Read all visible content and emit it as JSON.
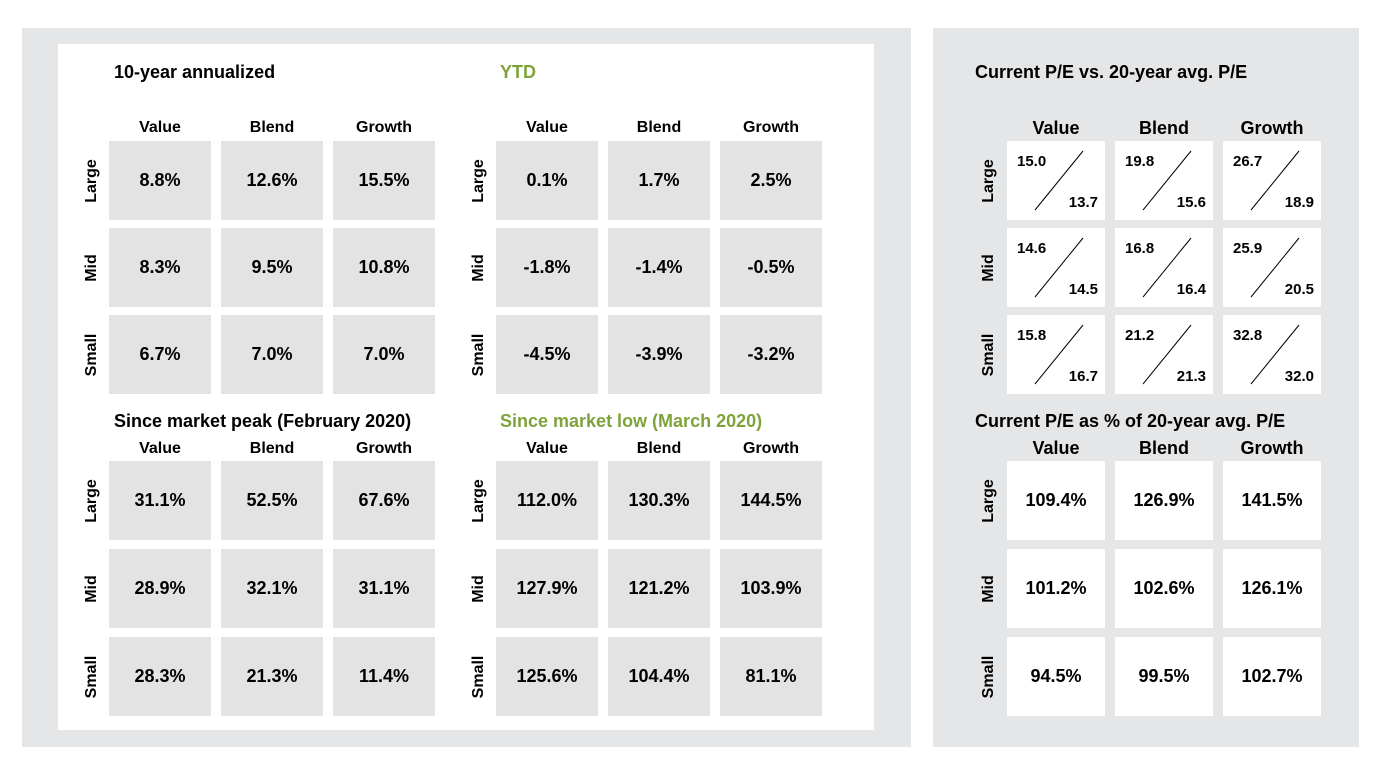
{
  "colors": {
    "panel_bg": "#e5e6e8",
    "cell_gray": "#e3e3e3",
    "green_title": "#7fa33b"
  },
  "columns": [
    "Value",
    "Blend",
    "Growth"
  ],
  "rows": [
    "Large",
    "Mid",
    "Small"
  ],
  "chart_data": [
    {
      "type": "table",
      "title": "10-year annualized",
      "values": [
        [
          "8.8%",
          "12.6%",
          "15.5%"
        ],
        [
          "8.3%",
          "9.5%",
          "10.8%"
        ],
        [
          "6.7%",
          "7.0%",
          "7.0%"
        ]
      ]
    },
    {
      "type": "table",
      "title": "YTD",
      "values": [
        [
          "0.1%",
          "1.7%",
          "2.5%"
        ],
        [
          "-1.8%",
          "-1.4%",
          "-0.5%"
        ],
        [
          "-4.5%",
          "-3.9%",
          "-3.2%"
        ]
      ]
    },
    {
      "type": "table",
      "title": "Since market peak (February 2020)",
      "values": [
        [
          "31.1%",
          "52.5%",
          "67.6%"
        ],
        [
          "28.9%",
          "32.1%",
          "31.1%"
        ],
        [
          "28.3%",
          "21.3%",
          "11.4%"
        ]
      ]
    },
    {
      "type": "table",
      "title": "Since market low (March 2020)",
      "values": [
        [
          "112.0%",
          "130.3%",
          "144.5%"
        ],
        [
          "127.9%",
          "121.2%",
          "103.9%"
        ],
        [
          "125.6%",
          "104.4%",
          "81.1%"
        ]
      ]
    },
    {
      "type": "table",
      "title": "Current P/E vs. 20-year avg. P/E",
      "current": [
        [
          "15.0",
          "19.8",
          "26.7"
        ],
        [
          "14.6",
          "16.8",
          "25.9"
        ],
        [
          "15.8",
          "21.2",
          "32.8"
        ]
      ],
      "average": [
        [
          "13.7",
          "15.6",
          "18.9"
        ],
        [
          "14.5",
          "16.4",
          "20.5"
        ],
        [
          "16.7",
          "21.3",
          "32.0"
        ]
      ]
    },
    {
      "type": "table",
      "title": "Current P/E as % of 20-year avg. P/E",
      "values": [
        [
          "109.4%",
          "126.9%",
          "141.5%"
        ],
        [
          "101.2%",
          "102.6%",
          "126.1%"
        ],
        [
          "94.5%",
          "99.5%",
          "102.7%"
        ]
      ]
    }
  ]
}
